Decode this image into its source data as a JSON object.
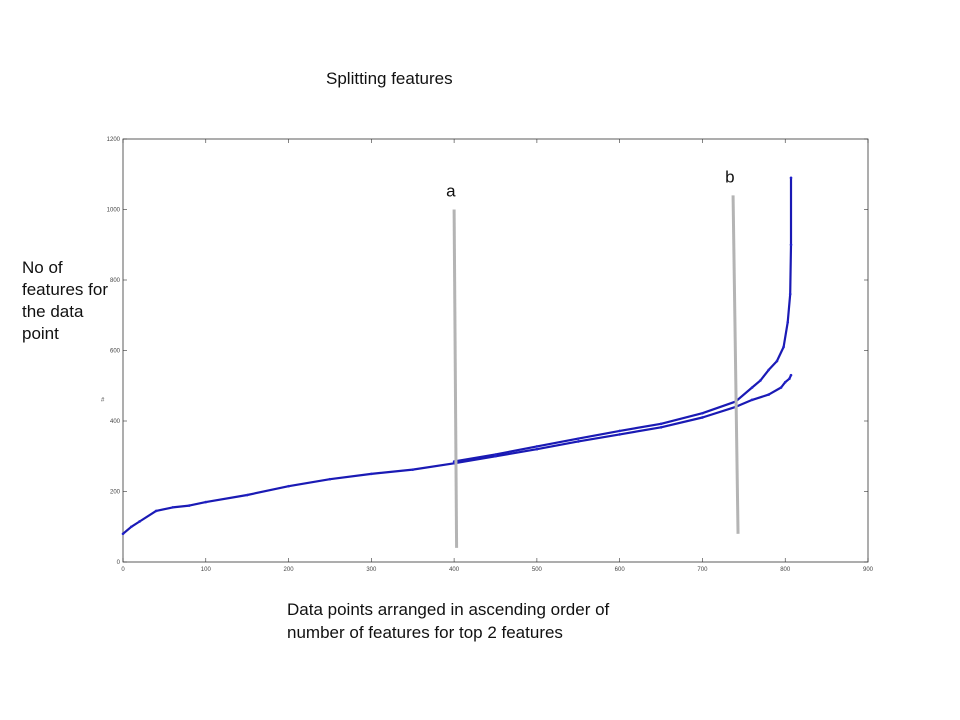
{
  "chart_data": {
    "type": "line",
    "title": "Splitting features",
    "xlabel_lines": [
      "Data points arranged in ascending order of",
      "number of features for top 2 features"
    ],
    "ylabel_lines": [
      "No of",
      "features for",
      "the data",
      "point"
    ],
    "axis_mini_label": "#",
    "xlim": [
      0,
      900
    ],
    "ylim": [
      0,
      1200
    ],
    "xticks": [
      0,
      100,
      200,
      300,
      400,
      500,
      600,
      700,
      800,
      900
    ],
    "yticks": [
      0,
      200,
      400,
      600,
      800,
      1000,
      1200
    ],
    "colors": {
      "series": "#1a1ab4",
      "markers": "#2222cc",
      "axes": "#333333",
      "markers_lines": "#b4b4b4"
    },
    "series": [
      {
        "x": [
          0,
          10,
          20,
          40,
          60,
          80,
          100,
          150,
          200,
          250,
          300,
          350,
          400,
          450,
          500,
          550,
          600,
          650,
          700,
          740,
          760,
          780,
          795,
          800,
          805,
          807
        ],
        "y": [
          80,
          100,
          115,
          145,
          155,
          160,
          170,
          190,
          215,
          235,
          250,
          262,
          280,
          300,
          320,
          342,
          362,
          382,
          410,
          440,
          460,
          475,
          495,
          510,
          520,
          530
        ]
      },
      {
        "x": [
          400,
          450,
          500,
          550,
          600,
          650,
          700,
          740,
          760,
          770,
          780,
          790,
          798,
          803,
          806,
          807,
          807
        ],
        "y": [
          285,
          305,
          328,
          350,
          372,
          392,
          422,
          455,
          495,
          515,
          545,
          570,
          610,
          680,
          760,
          900,
          1090
        ]
      }
    ],
    "annotations": [
      {
        "label": "a",
        "x1": 400,
        "y1": 1000,
        "x2": 403,
        "y2": 40
      },
      {
        "label": "b",
        "x1": 737,
        "y1": 1040,
        "x2": 743,
        "y2": 80
      }
    ]
  }
}
